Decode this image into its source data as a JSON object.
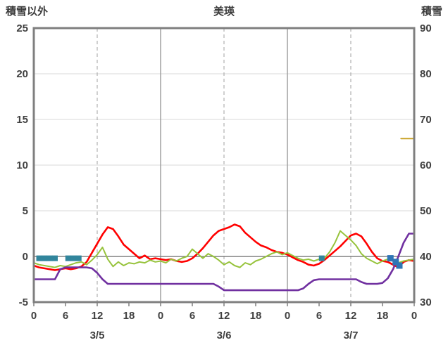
{
  "header": {
    "left_label": "積雪以外",
    "title": "美瑛",
    "right_label": "積雪"
  },
  "chart_data": {
    "type": "line",
    "title": "美瑛",
    "left_axis": {
      "label": "積雪以外",
      "min": -5,
      "max": 25,
      "ticks": [
        25,
        20,
        15,
        10,
        5,
        0,
        -5
      ]
    },
    "right_axis": {
      "label": "積雪",
      "min": 30,
      "max": 90,
      "ticks": [
        90,
        80,
        70,
        60,
        50,
        40,
        30
      ]
    },
    "x_axis": {
      "hours_total": 72,
      "tick_step": 6,
      "tick_labels": [
        "0",
        "6",
        "12",
        "18",
        "0",
        "6",
        "12",
        "18",
        "0",
        "6",
        "12",
        "18",
        "0"
      ],
      "date_labels": [
        {
          "label": "3/5",
          "hour": 12
        },
        {
          "label": "3/6",
          "hour": 36
        },
        {
          "label": "3/7",
          "hour": 60
        }
      ]
    },
    "gridlines": {
      "horizontal_values": [
        20,
        15,
        10,
        5
      ],
      "zero_value": 0,
      "solid_vertical_hours": [
        24,
        48
      ],
      "dashed_vertical_hours": [
        12,
        36,
        60
      ]
    },
    "style": {
      "grid_color": "#D9D9D9",
      "vgrid_color": "#A0A0A0",
      "zero_line_color": "#808080",
      "frame_color": "#7F7F7F",
      "tick_color": "#404040"
    },
    "series": [
      {
        "name": "red-line",
        "color": "#FF0000",
        "width": 2.6,
        "axis": "left",
        "values": [
          -1.0,
          -1.2,
          -1.3,
          -1.4,
          -1.5,
          -1.4,
          -1.3,
          -1.4,
          -1.3,
          -1.1,
          -0.6,
          0.4,
          1.4,
          2.4,
          3.2,
          3.0,
          2.2,
          1.3,
          0.8,
          0.3,
          -0.2,
          0.1,
          -0.3,
          -0.2,
          -0.3,
          -0.4,
          -0.3,
          -0.5,
          -0.6,
          -0.5,
          -0.2,
          0.3,
          0.9,
          1.6,
          2.3,
          2.8,
          3.0,
          3.2,
          3.5,
          3.3,
          2.6,
          2.1,
          1.6,
          1.2,
          1.0,
          0.7,
          0.5,
          0.4,
          0.2,
          -0.1,
          -0.4,
          -0.6,
          -0.9,
          -1.0,
          -0.8,
          -0.4,
          0.1,
          0.6,
          1.1,
          1.7,
          2.3,
          2.5,
          2.2,
          1.4,
          0.5,
          -0.2,
          -0.5,
          -0.6,
          -0.9,
          -1.2,
          -0.6,
          -0.4,
          -0.5
        ]
      },
      {
        "name": "green-line",
        "color": "#97C33C",
        "width": 2,
        "axis": "left",
        "values": [
          -0.7,
          -0.9,
          -1.0,
          -1.1,
          -1.2,
          -1.0,
          -1.1,
          -0.9,
          -0.7,
          -0.6,
          -0.9,
          -0.4,
          0.2,
          1.0,
          -0.3,
          -1.1,
          -0.6,
          -1.0,
          -0.7,
          -0.8,
          -0.6,
          -0.7,
          -0.4,
          -0.6,
          -0.5,
          -0.7,
          -0.3,
          -0.5,
          -0.2,
          0.0,
          0.8,
          0.3,
          -0.2,
          0.3,
          0.0,
          -0.4,
          -0.9,
          -0.6,
          -1.0,
          -1.2,
          -0.7,
          -0.9,
          -0.5,
          -0.3,
          0.0,
          0.3,
          0.5,
          0.2,
          0.4,
          0.1,
          -0.2,
          -0.4,
          -0.3,
          -0.5,
          -0.3,
          -0.2,
          0.5,
          1.5,
          2.8,
          2.3,
          1.8,
          1.2,
          0.3,
          -0.2,
          -0.5,
          -0.8,
          -0.5,
          -0.3,
          -0.5,
          -0.7,
          -0.5,
          -0.4,
          -0.3
        ]
      },
      {
        "name": "purple-line",
        "color": "#7030A0",
        "width": 2.6,
        "axis": "left",
        "values": [
          -2.5,
          -2.5,
          -2.5,
          -2.5,
          -2.5,
          -1.4,
          -1.2,
          -1.2,
          -1.2,
          -1.2,
          -1.2,
          -1.3,
          -1.8,
          -2.5,
          -3.0,
          -3.0,
          -3.0,
          -3.0,
          -3.0,
          -3.0,
          -3.0,
          -3.0,
          -3.0,
          -3.0,
          -3.0,
          -3.0,
          -3.0,
          -3.0,
          -3.0,
          -3.0,
          -3.0,
          -3.0,
          -3.0,
          -3.0,
          -3.0,
          -3.3,
          -3.7,
          -3.7,
          -3.7,
          -3.7,
          -3.7,
          -3.7,
          -3.7,
          -3.7,
          -3.7,
          -3.7,
          -3.7,
          -3.7,
          -3.7,
          -3.7,
          -3.7,
          -3.5,
          -3.0,
          -2.6,
          -2.5,
          -2.5,
          -2.5,
          -2.5,
          -2.5,
          -2.5,
          -2.5,
          -2.5,
          -2.8,
          -3.0,
          -3.0,
          -3.0,
          -2.9,
          -2.4,
          -1.4,
          0.0,
          1.5,
          2.5,
          2.5
        ]
      },
      {
        "name": "orange-line-segment",
        "color": "#C9A227",
        "width": 2,
        "axis": "left",
        "points": [
          [
            69.5,
            12.9
          ],
          [
            72,
            12.9
          ]
        ]
      }
    ],
    "markers": [
      {
        "name": "teal-square-marker",
        "color": "#31859C",
        "size": 8,
        "points": [
          [
            1,
            -0.2
          ],
          [
            2,
            -0.2
          ],
          [
            3,
            -0.2
          ],
          [
            4,
            -0.2
          ],
          [
            6.5,
            -0.2
          ],
          [
            7.5,
            -0.2
          ],
          [
            8.5,
            -0.2
          ],
          [
            54.5,
            -0.2
          ]
        ]
      },
      {
        "name": "blue-square-marker",
        "color": "#2E75B6",
        "size": 9,
        "points": [
          [
            67.5,
            -0.2
          ],
          [
            68.5,
            -0.6
          ],
          [
            69.2,
            -1.0
          ]
        ]
      }
    ]
  }
}
